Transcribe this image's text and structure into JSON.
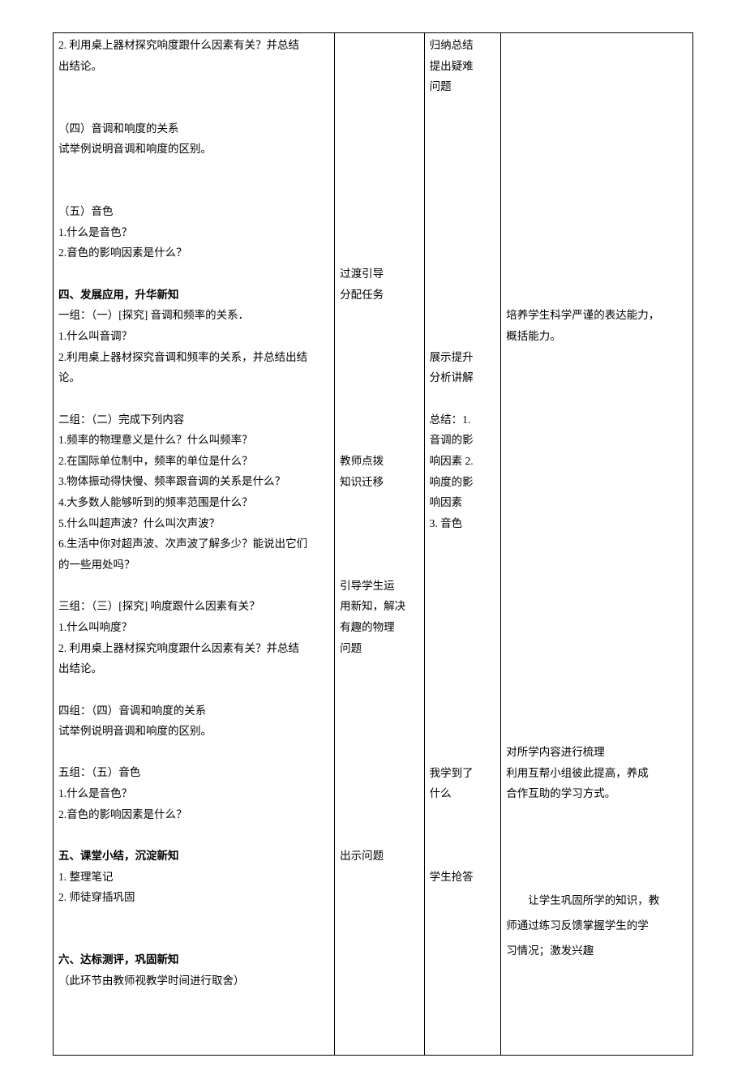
{
  "col1": {
    "s1_l1": "2. 利用桌上器材探究响度跟什么因素有关？并总结",
    "s1_l2": "出结论。",
    "s2_h": "（四）音调和响度的关系",
    "s2_l1": "试举例说明音调和响度的区别。",
    "s3_h": "（五）音色",
    "s3_l1": "1.什么是音色？",
    "s3_l2": "2.音色的影响因素是什么？",
    "s4_h": "四、发展应用，升华新知",
    "s4_l1": "一组：（一）[探究] 音调和频率的关系．",
    "s4_l2": "1.什么叫音调？",
    "s4_l3": "2.利用桌上器材探究音调和频率的关系，并总结出结",
    "s4_l4": "论。",
    "s5_l1": "二组：（二）完成下列内容",
    "s5_l2": "1.频率的物理意义是什么？什么叫频率？",
    "s5_l3": "2.在国际单位制中，频率的单位是什么？",
    "s5_l4": "3.物体振动得快慢、频率跟音调的关系是什么？",
    "s5_l5": "4.大多数人能够听到的频率范围是什么？",
    "s5_l6": "5.什么叫超声波？什么叫次声波？",
    "s5_l7": "6.生活中你对超声波、次声波了解多少？能说出它们",
    "s5_l8": "的一些用处吗？",
    "s6_l1": "三组：（三）[探究] 响度跟什么因素有关？",
    "s6_l2": "1.什么叫响度？",
    "s6_l3": "2. 利用桌上器材探究响度跟什么因素有关？并总结",
    "s6_l4": "出结论。",
    "s7_l1": "四组：（四）音调和响度的关系",
    "s7_l2": "试举例说明音调和响度的区别。",
    "s8_l1": "五组：（五）音色",
    "s8_l2": "1.什么是音色？",
    "s8_l3": "2.音色的影响因素是什么？",
    "s9_h": "五、课堂小结，沉淀新知",
    "s9_l1": "1. 整理笔记",
    "s9_l2": "2. 师徒穿插巩固",
    "s10_h": "六、达标测评，巩固新知",
    "s10_l1": "（此环节由教师视教学时间进行取舍）"
  },
  "col2": {
    "b1_l1": "过渡引导",
    "b1_l2": "分配任务",
    "b2_l1": "教师点拨",
    "b2_l2": "知识迁移",
    "b3_l1": "引导学生运",
    "b3_l2": "用新知，解决",
    "b3_l3": "有趣的物理",
    "b3_l4": "问题",
    "b4_l1": "出示问题"
  },
  "col3": {
    "b1_l1": "归纳总结",
    "b1_l2": "提出疑难",
    "b1_l3": "问题",
    "b2_l1": "展示提升",
    "b2_l2": "分析讲解",
    "b3_l1": "总结：1.",
    "b3_l2": "音调的影",
    "b3_l3": "响因素 2.",
    "b3_l4": "响度的影",
    "b3_l5": "响因素",
    "b3_l6": "3. 音色",
    "b4_l1": "我学到了",
    "b4_l2": "什么",
    "b5_l1": "学生抢答"
  },
  "col4": {
    "b1_l1": "培养学生科学严谨的表达能力，",
    "b1_l2": "概括能力。",
    "b2_l1": "对所学内容进行梳理",
    "b2_l2": "利用互帮小组彼此提高，养成",
    "b2_l3": "合作互助的学习方式。",
    "b3_l1": "让学生巩固所学的知识，教",
    "b3_l2": "师通过练习反馈掌握学生的学",
    "b3_l3": "习情况；激发兴趣"
  }
}
